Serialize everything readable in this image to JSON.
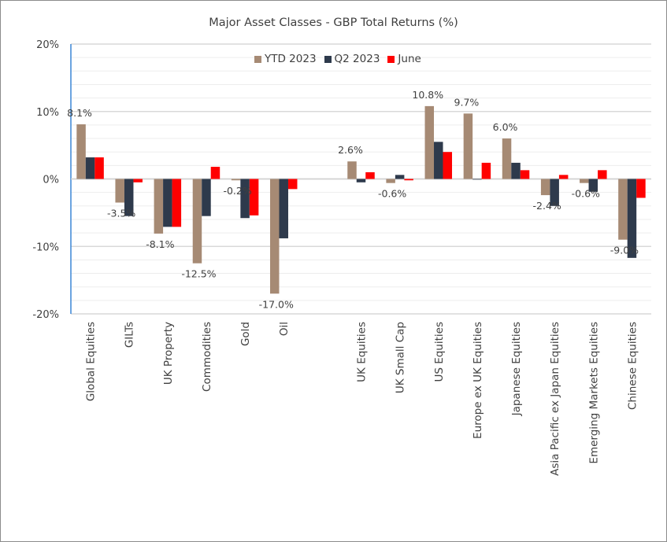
{
  "chart_data": {
    "type": "bar",
    "title": "Major Asset Classes - GBP Total Returns (%)",
    "categories": [
      "Global Equities",
      "GILTs",
      "UK Property",
      "Commodities",
      "Gold",
      "Oil",
      "",
      "UK Equities",
      "UK Small Cap",
      "US Equities",
      "Europe ex UK Equities",
      "Japanese Equities",
      "Asia Pacific ex Japan Equities",
      "Emerging Markets Equities",
      "Chinese Equities"
    ],
    "series": [
      {
        "name": "YTD 2023",
        "color": "#a68a74",
        "values": [
          8.1,
          -3.5,
          -8.1,
          -12.5,
          -0.2,
          -17.0,
          null,
          2.6,
          -0.6,
          10.8,
          9.7,
          6.0,
          -2.4,
          -0.6,
          -9.0
        ]
      },
      {
        "name": "Q2 2023",
        "color": "#2e3a4c",
        "values": [
          3.2,
          -5.5,
          -7.1,
          -5.5,
          -5.8,
          -8.8,
          null,
          -0.5,
          0.6,
          5.5,
          0.0,
          2.4,
          -4.0,
          -1.9,
          -11.7
        ]
      },
      {
        "name": "June",
        "color": "#ff0000",
        "values": [
          3.2,
          -0.5,
          -7.1,
          1.8,
          -5.4,
          -1.5,
          null,
          1.0,
          -0.2,
          4.0,
          2.4,
          1.3,
          0.6,
          1.3,
          -2.8
        ]
      }
    ],
    "data_labels": [
      "8.1%",
      "-3.5%",
      "-8.1%",
      "-12.5%",
      "-0.2%",
      "-17.0%",
      "",
      "2.6%",
      "-0.6%",
      "10.8%",
      "9.7%",
      "6.0%",
      "-2.4%",
      "-0.6%",
      "-9.0%"
    ],
    "yticks": [
      "20%",
      "10%",
      "0%",
      "-10%",
      "-20%"
    ],
    "ylim": [
      -20,
      20
    ],
    "grid": true,
    "legend": "top-center"
  }
}
